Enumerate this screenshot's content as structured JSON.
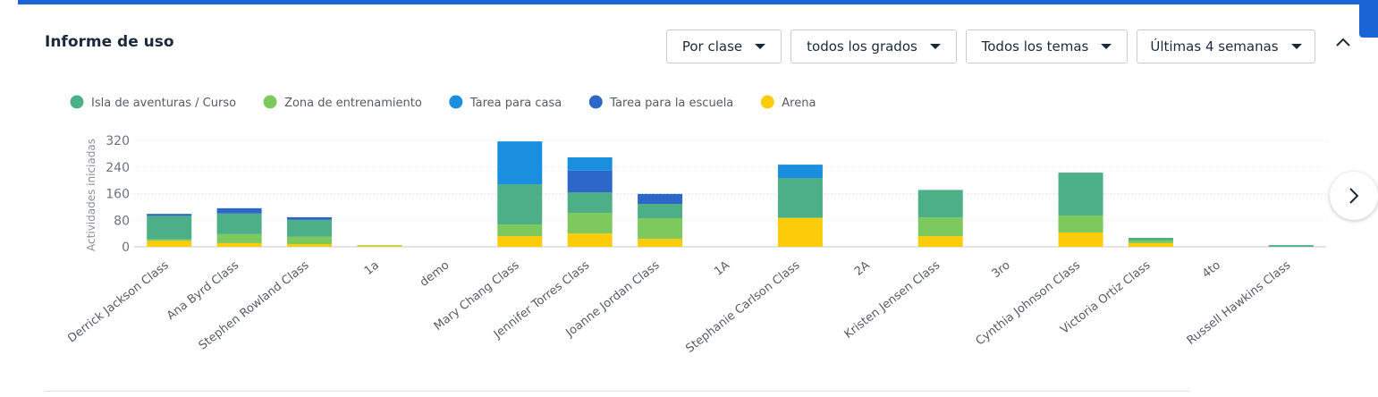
{
  "header": {
    "title": "Informe de uso",
    "filters": [
      "Por clase",
      "todos los grados",
      "Todos los temas",
      "Últimas 4 semanas"
    ]
  },
  "chart_data": {
    "type": "stacked-bar",
    "y_label": "Actividades iniciadas",
    "categories": [
      "Derrick Jackson Class",
      "Ana Byrd Class",
      "Stephen Rowland Class",
      "1a",
      "demo",
      "Mary Chang Class",
      "Jennifer Torres Class",
      "Joanne Jordan Class",
      "1A",
      "Stephanie Carlson Class",
      "2A",
      "Kristen Jensen Class",
      "3ro",
      "Cynthia Johnson Class",
      "Victoria Ortiz Class",
      "4to",
      "Russell Hawkins Class"
    ],
    "series": [
      {
        "name": "Isla de aventuras / Curso",
        "color": "#4caf87",
        "values": [
          70,
          62,
          51,
          0,
          0,
          121,
          62,
          43,
          0,
          119,
          0,
          83,
          0,
          129,
          8,
          0,
          5
        ]
      },
      {
        "name": "Zona de entrenamiento",
        "color": "#7dc95e",
        "values": [
          5,
          27,
          22,
          2,
          0,
          35,
          62,
          62,
          0,
          2,
          0,
          56,
          0,
          51,
          8,
          0,
          0
        ]
      },
      {
        "name": "Tarea para casa",
        "color": "#1a8fe0",
        "values": [
          0,
          0,
          0,
          0,
          0,
          129,
          40,
          0,
          0,
          40,
          0,
          0,
          0,
          0,
          0,
          0,
          0
        ]
      },
      {
        "name": "Tarea para la escuela",
        "color": "#2d68c9",
        "values": [
          6,
          16,
          8,
          0,
          0,
          0,
          65,
          30,
          0,
          0,
          0,
          0,
          0,
          0,
          0,
          0,
          0
        ]
      },
      {
        "name": "Arena",
        "color": "#fccb0a",
        "values": [
          18,
          11,
          8,
          3,
          0,
          32,
          40,
          24,
          0,
          86,
          0,
          32,
          0,
          43,
          11,
          0,
          0
        ]
      }
    ],
    "stack_order": [
      "Arena",
      "Zona de entrenamiento",
      "Isla de aventuras / Curso",
      "Tarea para la escuela",
      "Tarea para casa"
    ],
    "ylim": [
      0,
      330
    ],
    "yticks": [
      0,
      80,
      160,
      240,
      320
    ],
    "grid": true
  }
}
